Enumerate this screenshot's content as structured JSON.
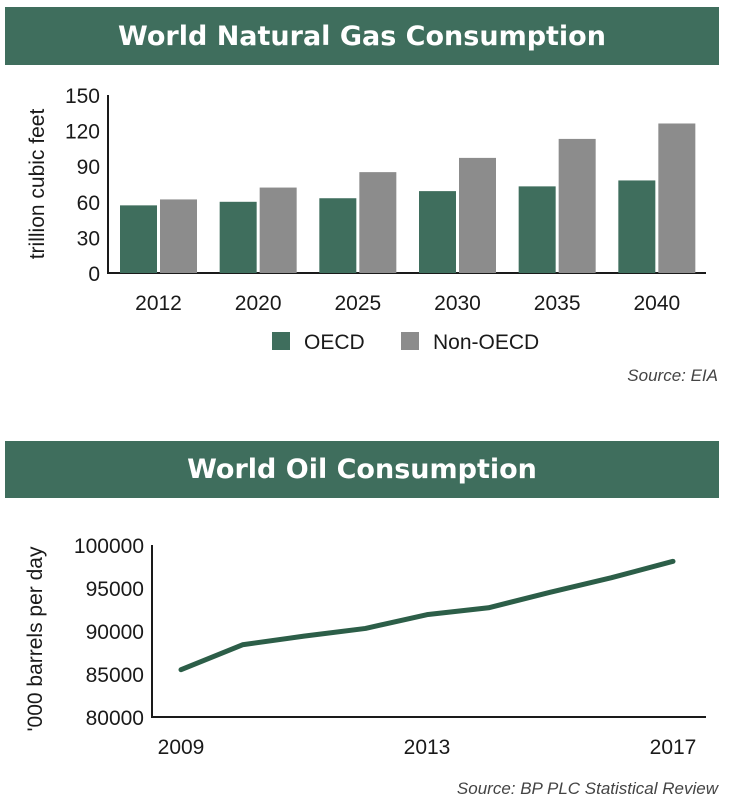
{
  "colors": {
    "banner": "#3f6e5d",
    "oecd": "#3f6e5d",
    "non_oecd": "#8c8c8c",
    "line": "#2c5e48"
  },
  "gas": {
    "title": "World Natural Gas Consumption",
    "source": "Source: EIA"
  },
  "oil": {
    "title": "World Oil Consumption",
    "source": "Source: BP PLC Statistical Review"
  },
  "chart_data": [
    {
      "type": "bar",
      "title": "World Natural Gas Consumption",
      "ylabel": "trillion cubic feet",
      "xlabel": "",
      "categories": [
        "2012",
        "2020",
        "2025",
        "2030",
        "2035",
        "2040"
      ],
      "series": [
        {
          "name": "OECD",
          "values": [
            57,
            60,
            63,
            69,
            73,
            78
          ]
        },
        {
          "name": "Non-OECD",
          "values": [
            62,
            72,
            85,
            97,
            113,
            126
          ]
        }
      ],
      "ylim": [
        0,
        150
      ],
      "yticks": [
        "0",
        "30",
        "60",
        "90",
        "120",
        "150"
      ],
      "legend": "bottom",
      "grid": false
    },
    {
      "type": "line",
      "title": "World Oil Consumption",
      "ylabel": "'000 barrels per day",
      "xlabel": "",
      "x": [
        2009,
        2010,
        2011,
        2012,
        2013,
        2014,
        2015,
        2016,
        2017
      ],
      "series": [
        {
          "values": [
            85500,
            88400,
            89400,
            90300,
            91900,
            92700,
            94500,
            96200,
            98100
          ]
        }
      ],
      "xticks": [
        "2009",
        "2013",
        "2017"
      ],
      "yticks": [
        "80000",
        "85000",
        "90000",
        "95000",
        "100000"
      ],
      "ylim": [
        80000,
        100000
      ],
      "xlim": [
        2009,
        2017
      ],
      "legend": "none",
      "grid": false
    }
  ]
}
